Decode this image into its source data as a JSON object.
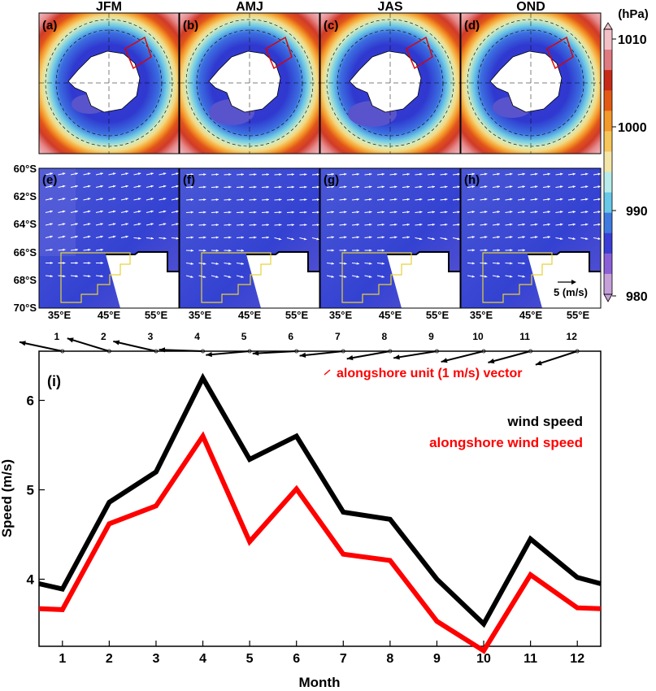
{
  "top_panels": [
    {
      "label": "(a)",
      "season": "JFM"
    },
    {
      "label": "(b)",
      "season": "AMJ"
    },
    {
      "label": "(c)",
      "season": "JAS"
    },
    {
      "label": "(d)",
      "season": "OND"
    }
  ],
  "colorbar": {
    "unit": "(hPa)",
    "ticks": [
      "1010",
      "1000",
      "990",
      "980"
    ],
    "colors": [
      "#c6a0d9",
      "#8a60d8",
      "#3a3ed6",
      "#3f7ae0",
      "#68c8e8",
      "#b8ecea",
      "#f3e6a8",
      "#f7c65a",
      "#f39a2a",
      "#e45a14",
      "#c82a18",
      "#e07a80",
      "#f3c0c8"
    ]
  },
  "wind_panels": [
    {
      "label": "(e)"
    },
    {
      "label": "(f)"
    },
    {
      "label": "(g)"
    },
    {
      "label": "(h)"
    }
  ],
  "wind_axes": {
    "lat_ticks": [
      "60°S",
      "62°S",
      "64°S",
      "66°S",
      "68°S",
      "70°S"
    ],
    "lon_ticks": [
      "35°E",
      "45°E",
      "55°E"
    ],
    "ref_vector": "5 (m/s)"
  },
  "chart_data": {
    "type": "line",
    "panel_label": "(i)",
    "xlabel": "Month",
    "ylabel": "Speed (m/s)",
    "x": [
      0.5,
      1,
      2,
      3,
      4,
      5,
      6,
      7,
      8,
      9,
      10,
      11,
      12,
      12.5
    ],
    "xticks": [
      1,
      2,
      3,
      4,
      5,
      6,
      7,
      8,
      9,
      10,
      11,
      12
    ],
    "yticks": [
      4,
      5,
      6
    ],
    "xlim": [
      0.5,
      12.5
    ],
    "ylim": [
      3.25,
      6.55
    ],
    "series": [
      {
        "name": "wind speed",
        "color": "#000000",
        "values": [
          3.95,
          3.89,
          4.86,
          5.2,
          6.25,
          5.34,
          5.6,
          4.75,
          4.67,
          4.0,
          3.5,
          4.45,
          4.02,
          3.95
        ]
      },
      {
        "name": "alongshore wind speed",
        "color": "#ff0000",
        "values": [
          3.67,
          3.66,
          4.62,
          4.82,
          5.6,
          4.42,
          5.01,
          4.28,
          4.21,
          3.53,
          3.2,
          4.05,
          3.68,
          3.67
        ]
      }
    ],
    "vector_row": {
      "months": [
        "1",
        "2",
        "3",
        "4",
        "5",
        "6",
        "7",
        "8",
        "9",
        "10",
        "11",
        "12"
      ],
      "angles_deg": [
        -168,
        -163,
        -167,
        -178,
        175,
        177,
        174,
        170,
        171,
        166,
        165,
        162
      ],
      "legend": "alongshore unit (1 m/s) vector"
    }
  }
}
